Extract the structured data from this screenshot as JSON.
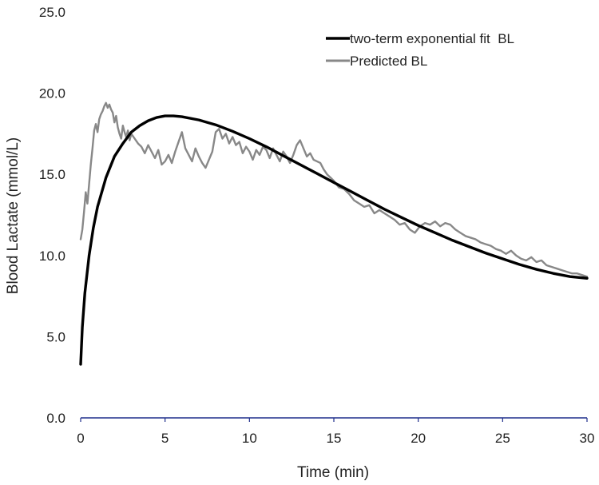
{
  "chart_data": {
    "type": "line",
    "title": "",
    "xlabel": "Time (min)",
    "ylabel": "Blood Lactate (mmol/L)",
    "xlim": [
      0,
      30
    ],
    "ylim": [
      0,
      25
    ],
    "x_ticks": [
      "0",
      "5",
      "10",
      "15",
      "20",
      "25",
      "30"
    ],
    "y_ticks": [
      "0.0",
      "5.0",
      "10.0",
      "15.0",
      "20.0",
      "25.0"
    ],
    "grid": false,
    "legend_position": "top-right",
    "series": [
      {
        "name": "two-term exponential fit  BL",
        "color": "#000000",
        "x": [
          0,
          0.1,
          0.25,
          0.5,
          0.75,
          1,
          1.5,
          2,
          2.5,
          3,
          3.5,
          4,
          4.5,
          5,
          5.5,
          6,
          7,
          8,
          9,
          10,
          11,
          12,
          13,
          14,
          15,
          16,
          17,
          18,
          19,
          20,
          21,
          22,
          23,
          24,
          25,
          26,
          27,
          28,
          29,
          30
        ],
        "y": [
          3.3,
          5.6,
          7.7,
          10.0,
          11.7,
          13.0,
          14.8,
          16.1,
          16.9,
          17.6,
          18.0,
          18.3,
          18.5,
          18.6,
          18.6,
          18.55,
          18.35,
          18.05,
          17.65,
          17.2,
          16.7,
          16.15,
          15.6,
          15.05,
          14.5,
          13.95,
          13.4,
          12.85,
          12.35,
          11.85,
          11.4,
          10.95,
          10.55,
          10.15,
          9.8,
          9.45,
          9.15,
          8.9,
          8.7,
          8.6
        ]
      },
      {
        "name": "Predicted BL",
        "color": "#888888",
        "x": [
          0,
          0.1,
          0.2,
          0.3,
          0.4,
          0.5,
          0.6,
          0.7,
          0.8,
          0.9,
          1.0,
          1.1,
          1.2,
          1.3,
          1.4,
          1.5,
          1.6,
          1.7,
          1.8,
          1.9,
          2.0,
          2.1,
          2.2,
          2.3,
          2.4,
          2.5,
          2.6,
          2.7,
          2.8,
          2.9,
          3.0,
          3.2,
          3.4,
          3.6,
          3.8,
          4.0,
          4.2,
          4.4,
          4.6,
          4.8,
          5.0,
          5.2,
          5.4,
          5.6,
          5.8,
          6.0,
          6.2,
          6.4,
          6.6,
          6.8,
          7.0,
          7.2,
          7.4,
          7.6,
          7.8,
          8.0,
          8.2,
          8.4,
          8.6,
          8.8,
          9.0,
          9.2,
          9.4,
          9.6,
          9.8,
          10.0,
          10.2,
          10.4,
          10.6,
          10.8,
          11.0,
          11.2,
          11.4,
          11.6,
          11.8,
          12.0,
          12.2,
          12.4,
          12.6,
          12.8,
          13.0,
          13.2,
          13.4,
          13.6,
          13.8,
          14.0,
          14.2,
          14.4,
          14.6,
          14.8,
          15.0,
          15.3,
          15.6,
          15.9,
          16.2,
          16.5,
          16.8,
          17.1,
          17.4,
          17.7,
          18.0,
          18.3,
          18.6,
          18.9,
          19.2,
          19.5,
          19.8,
          20.1,
          20.4,
          20.7,
          21.0,
          21.3,
          21.6,
          21.9,
          22.2,
          22.5,
          22.8,
          23.1,
          23.4,
          23.7,
          24.0,
          24.3,
          24.6,
          24.9,
          25.2,
          25.5,
          25.8,
          26.1,
          26.4,
          26.7,
          27.0,
          27.3,
          27.6,
          27.9,
          28.2,
          28.5,
          28.8,
          29.1,
          29.4,
          29.7,
          30.0
        ],
        "y": [
          11.0,
          11.6,
          12.7,
          13.9,
          13.2,
          14.4,
          15.6,
          16.6,
          17.7,
          18.1,
          17.6,
          18.4,
          18.7,
          18.9,
          19.2,
          19.4,
          19.1,
          19.3,
          19.0,
          18.8,
          18.2,
          18.6,
          17.9,
          17.5,
          17.2,
          18.0,
          17.6,
          17.3,
          17.7,
          17.1,
          17.5,
          17.2,
          16.9,
          16.7,
          16.3,
          16.8,
          16.4,
          16.0,
          16.5,
          15.6,
          15.8,
          16.2,
          15.7,
          16.4,
          17.0,
          17.6,
          16.6,
          16.2,
          15.8,
          16.6,
          16.1,
          15.7,
          15.4,
          15.9,
          16.4,
          17.6,
          17.8,
          17.2,
          17.5,
          16.9,
          17.3,
          16.8,
          17.0,
          16.3,
          16.7,
          16.4,
          15.9,
          16.5,
          16.2,
          16.7,
          16.5,
          16.0,
          16.6,
          16.2,
          15.8,
          16.4,
          16.1,
          15.7,
          16.2,
          16.8,
          17.1,
          16.6,
          16.1,
          16.3,
          15.9,
          15.8,
          15.7,
          15.3,
          15.0,
          14.8,
          14.6,
          14.2,
          14.1,
          13.8,
          13.4,
          13.2,
          13.0,
          13.1,
          12.6,
          12.8,
          12.6,
          12.4,
          12.2,
          11.9,
          12.0,
          11.6,
          11.4,
          11.8,
          12.0,
          11.9,
          12.1,
          11.8,
          12.0,
          11.9,
          11.6,
          11.4,
          11.2,
          11.1,
          11.0,
          10.8,
          10.7,
          10.6,
          10.4,
          10.3,
          10.1,
          10.3,
          10.0,
          9.8,
          9.7,
          9.9,
          9.6,
          9.7,
          9.4,
          9.3,
          9.2,
          9.1,
          9.0,
          8.9,
          8.9,
          8.8,
          8.7
        ]
      }
    ]
  }
}
